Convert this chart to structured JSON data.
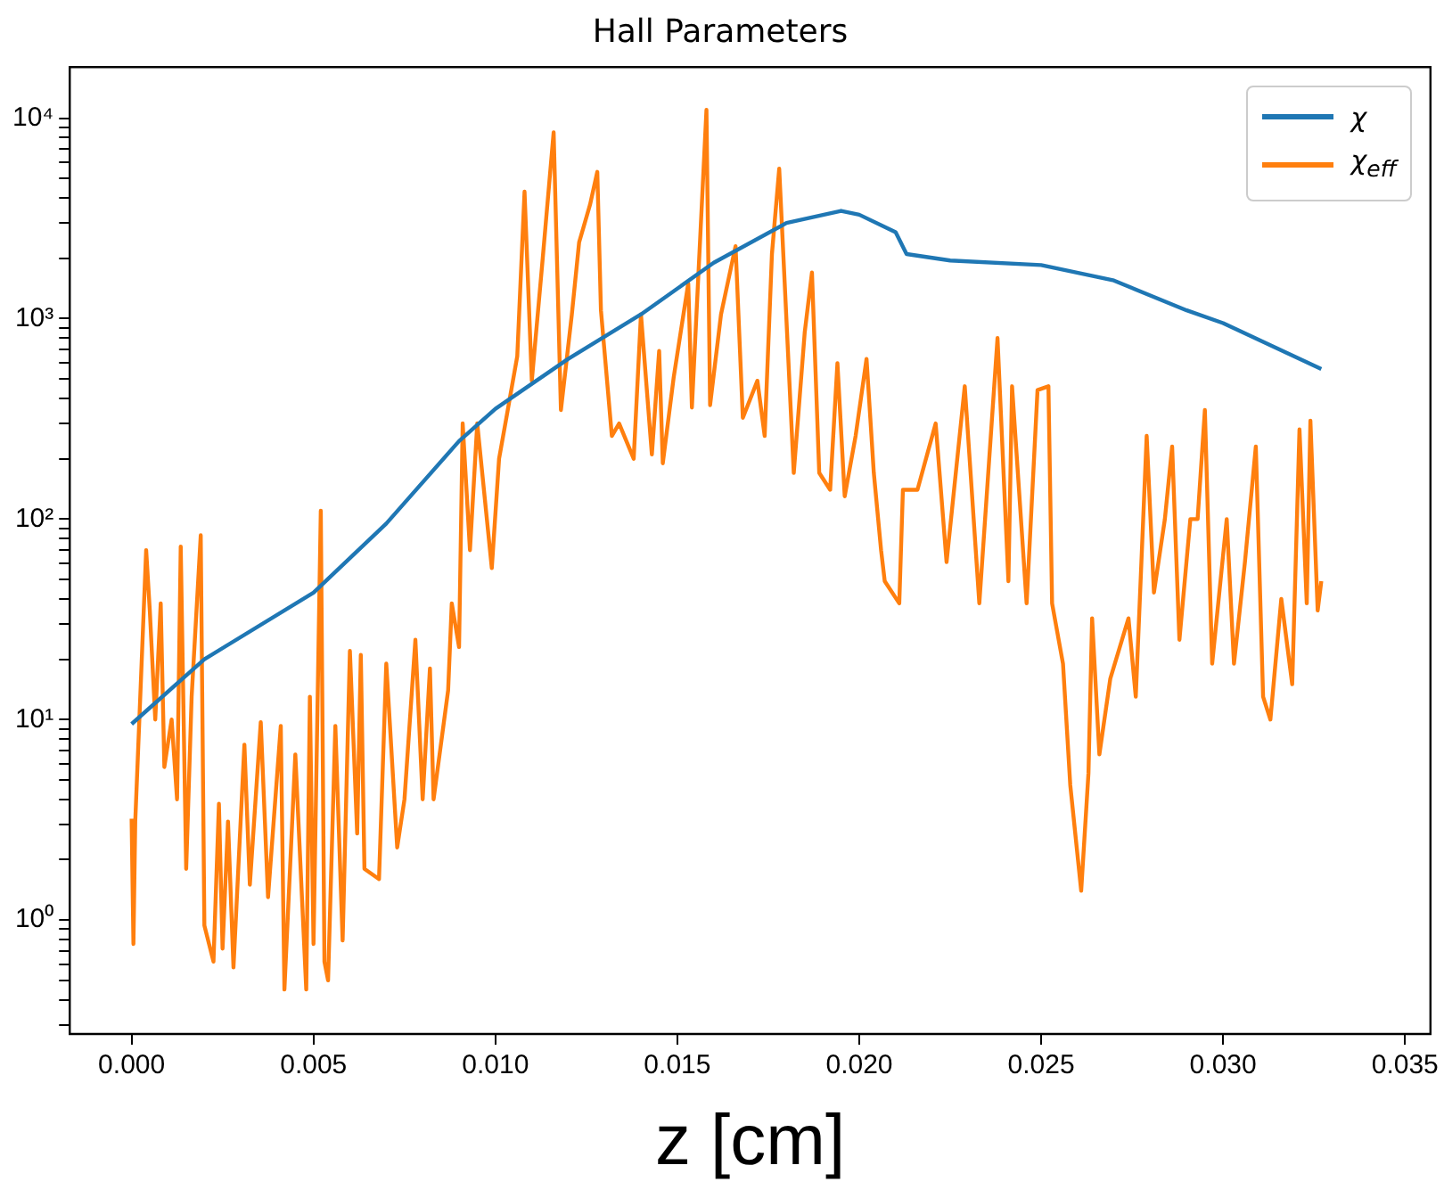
{
  "chart_data": {
    "type": "line",
    "title": "Hall Parameters",
    "xlabel": "z [cm]",
    "xlim": [
      -0.0017,
      0.0357
    ],
    "xticks": [
      {
        "value": 0,
        "label": "0.000"
      },
      {
        "value": 0.005,
        "label": "0.005"
      },
      {
        "value": 0.01,
        "label": "0.010"
      },
      {
        "value": 0.015,
        "label": "0.015"
      },
      {
        "value": 0.02,
        "label": "0.020"
      },
      {
        "value": 0.025,
        "label": "0.025"
      },
      {
        "value": 0.03,
        "label": "0.030"
      },
      {
        "value": 0.035,
        "label": "0.035"
      }
    ],
    "ylim": [
      0.27,
      18000
    ],
    "log": "y",
    "grid": false,
    "legend": "top right",
    "line_style": "solid",
    "marker": "none",
    "yticks": [
      {
        "value": 0.3,
        "label": null
      },
      {
        "value": 0.4,
        "label": null
      },
      {
        "value": 0.5,
        "label": null
      },
      {
        "value": 0.6,
        "label": null
      },
      {
        "value": 0.7,
        "label": null
      },
      {
        "value": 0.8,
        "label": null
      },
      {
        "value": 0.9,
        "label": null
      },
      {
        "value": 1,
        "label": "10⁰"
      },
      {
        "value": 2,
        "label": null
      },
      {
        "value": 3,
        "label": null
      },
      {
        "value": 4,
        "label": null
      },
      {
        "value": 5,
        "label": null
      },
      {
        "value": 6,
        "label": null
      },
      {
        "value": 7,
        "label": null
      },
      {
        "value": 8,
        "label": null
      },
      {
        "value": 9,
        "label": null
      },
      {
        "value": 10,
        "label": "10¹"
      },
      {
        "value": 20,
        "label": null
      },
      {
        "value": 30,
        "label": null
      },
      {
        "value": 40,
        "label": null
      },
      {
        "value": 50,
        "label": null
      },
      {
        "value": 60,
        "label": null
      },
      {
        "value": 70,
        "label": null
      },
      {
        "value": 80,
        "label": null
      },
      {
        "value": 90,
        "label": null
      },
      {
        "value": 100,
        "label": "10²"
      },
      {
        "value": 200,
        "label": null
      },
      {
        "value": 300,
        "label": null
      },
      {
        "value": 400,
        "label": null
      },
      {
        "value": 500,
        "label": null
      },
      {
        "value": 600,
        "label": null
      },
      {
        "value": 700,
        "label": null
      },
      {
        "value": 800,
        "label": null
      },
      {
        "value": 900,
        "label": null
      },
      {
        "value": 1000,
        "label": "10³"
      },
      {
        "value": 2000,
        "label": null
      },
      {
        "value": 3000,
        "label": null
      },
      {
        "value": 4000,
        "label": null
      },
      {
        "value": 5000,
        "label": null
      },
      {
        "value": 6000,
        "label": null
      },
      {
        "value": 7000,
        "label": null
      },
      {
        "value": 8000,
        "label": null
      },
      {
        "value": 9000,
        "label": null
      },
      {
        "value": 10000,
        "label": "10⁴"
      }
    ],
    "series": [
      {
        "name": "χ",
        "color": "#1f77b4",
        "x": [
          0,
          0.002,
          0.005,
          0.007,
          0.009,
          0.01,
          0.012,
          0.014,
          0.016,
          0.018,
          0.0195,
          0.02,
          0.021,
          0.0213,
          0.0225,
          0.025,
          0.027,
          0.029,
          0.03,
          0.0327
        ],
        "values": [
          9.5,
          20,
          43,
          95,
          245,
          355,
          630,
          1050,
          1900,
          3000,
          3450,
          3300,
          2700,
          2100,
          1950,
          1850,
          1550,
          1100,
          950,
          560
        ]
      },
      {
        "name": "χ$_{eff}$",
        "color": "#ff7f0e",
        "x": [
          0,
          5e-05,
          0.0001,
          0.0004,
          0.0005,
          0.00065,
          0.0008,
          0.0009,
          0.0011,
          0.00125,
          0.00135,
          0.0015,
          0.00165,
          0.0019,
          0.002,
          0.00225,
          0.0024,
          0.0025,
          0.00265,
          0.0028,
          0.0031,
          0.00325,
          0.00355,
          0.00375,
          0.0041,
          0.0042,
          0.0045,
          0.0048,
          0.0049,
          0.005,
          0.0052,
          0.0053,
          0.0054,
          0.0056,
          0.0058,
          0.006,
          0.0062,
          0.0063,
          0.0064,
          0.0068,
          0.007,
          0.0073,
          0.0075,
          0.0078,
          0.008,
          0.0082,
          0.0083,
          0.0087,
          0.0088,
          0.009,
          0.0091,
          0.0093,
          0.0095,
          0.0099,
          0.0101,
          0.0103,
          0.0106,
          0.0108,
          0.011,
          0.0113,
          0.0116,
          0.0118,
          0.0121,
          0.0123,
          0.0126,
          0.0128,
          0.0129,
          0.0132,
          0.0134,
          0.0138,
          0.014,
          0.0143,
          0.0145,
          0.0146,
          0.0149,
          0.0153,
          0.0154,
          0.0158,
          0.0159,
          0.0162,
          0.0166,
          0.0168,
          0.0172,
          0.0174,
          0.0176,
          0.0178,
          0.0182,
          0.0185,
          0.0187,
          0.0189,
          0.0192,
          0.0194,
          0.0196,
          0.0199,
          0.0202,
          0.0204,
          0.0206,
          0.0207,
          0.0211,
          0.0212,
          0.0216,
          0.0221,
          0.0224,
          0.0229,
          0.0233,
          0.0238,
          0.0241,
          0.0242,
          0.0246,
          0.0249,
          0.0252,
          0.0253,
          0.0256,
          0.0258,
          0.0261,
          0.0263,
          0.0264,
          0.0266,
          0.0269,
          0.0274,
          0.0276,
          0.0279,
          0.0281,
          0.0284,
          0.0286,
          0.0288,
          0.0291,
          0.0293,
          0.0295,
          0.0297,
          0.0301,
          0.0303,
          0.0306,
          0.0309,
          0.0311,
          0.0313,
          0.0316,
          0.0319,
          0.0321,
          0.0323,
          0.0324,
          0.0326,
          0.0327
        ],
        "values": [
          3.2,
          0.76,
          3.1,
          70,
          35,
          10,
          38,
          5.8,
          10,
          4.0,
          73,
          1.8,
          13,
          83,
          0.94,
          0.62,
          3.8,
          0.72,
          3.1,
          0.58,
          7.5,
          1.5,
          9.7,
          1.3,
          9.3,
          0.45,
          6.7,
          0.45,
          13,
          0.76,
          110,
          0.62,
          0.5,
          9.3,
          0.79,
          22,
          2.7,
          21,
          1.8,
          1.6,
          19,
          2.3,
          4.0,
          25,
          4.0,
          18,
          4.0,
          14,
          38,
          23,
          300,
          70,
          300,
          57,
          200,
          320,
          650,
          4300,
          490,
          2000,
          8500,
          350,
          1050,
          2400,
          3700,
          5400,
          1100,
          260,
          300,
          200,
          1050,
          210,
          690,
          190,
          510,
          1500,
          360,
          11000,
          370,
          1050,
          2300,
          320,
          490,
          260,
          2100,
          5600,
          170,
          850,
          1700,
          170,
          140,
          600,
          130,
          260,
          630,
          170,
          70,
          49,
          38,
          140,
          140,
          300,
          61,
          460,
          38,
          800,
          49,
          460,
          38,
          440,
          460,
          38,
          19,
          4.7,
          1.4,
          5.4,
          32,
          6.7,
          16,
          32,
          13,
          260,
          43,
          100,
          230,
          25,
          100,
          100,
          350,
          19,
          100,
          19,
          61,
          230,
          13,
          10,
          40,
          15,
          280,
          38,
          310,
          35,
          49
        ]
      }
    ]
  }
}
